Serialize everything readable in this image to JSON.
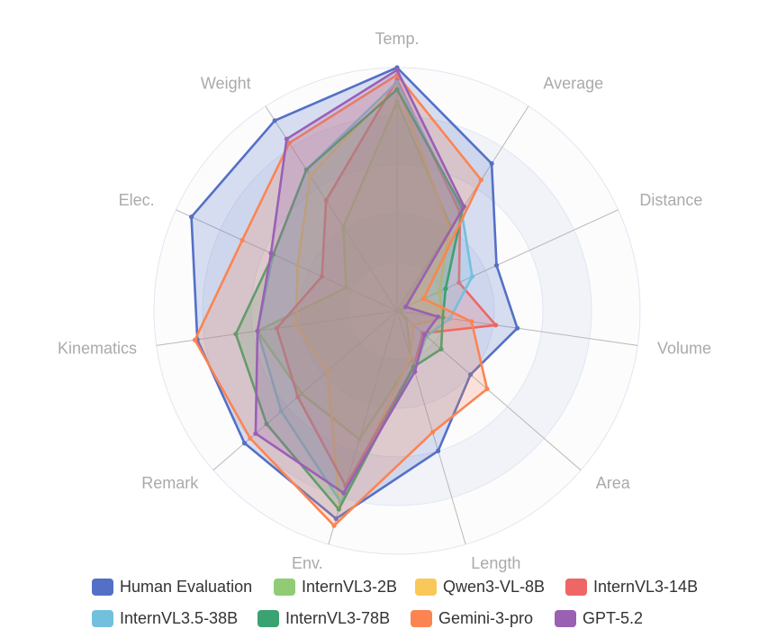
{
  "chart_data": {
    "type": "radar",
    "indicators": [
      "Temp.",
      "Average",
      "Distance",
      "Volume",
      "Area",
      "Length",
      "Env.",
      "Remark",
      "Kinematics",
      "Elec.",
      "Weight"
    ],
    "max": 100,
    "grid": true,
    "legend": "bottom",
    "series": [
      {
        "name": "Human Evaluation",
        "color": "#5470c6",
        "values": [
          100,
          72,
          45,
          50,
          40,
          60,
          89,
          83,
          83,
          93,
          93
        ]
      },
      {
        "name": "InternVL3-2B",
        "color": "#91cc75",
        "values": [
          86,
          41,
          3,
          1,
          5,
          21,
          55,
          52,
          58,
          23,
          41
        ]
      },
      {
        "name": "Qwen3-VL-8B",
        "color": "#fac858",
        "values": [
          93,
          40,
          19,
          19,
          9,
          20,
          84,
          38,
          42,
          45,
          66
        ]
      },
      {
        "name": "InternVL3-14B",
        "color": "#ee6666",
        "values": [
          95,
          48,
          28,
          41,
          14,
          24,
          75,
          54,
          50,
          34,
          54
        ]
      },
      {
        "name": "InternVL3.5-38B",
        "color": "#73c0de",
        "values": [
          94,
          49,
          34,
          22,
          16,
          25,
          82,
          63,
          58,
          56,
          69
        ]
      },
      {
        "name": "InternVL3-78B",
        "color": "#3ba272",
        "values": [
          91,
          50,
          22,
          19,
          24,
          24,
          85,
          71,
          67,
          56,
          69
        ]
      },
      {
        "name": "Gemini-3-pro",
        "color": "#fc8452",
        "values": [
          97,
          64,
          12,
          31,
          49,
          52,
          92,
          80,
          84,
          70,
          82
        ]
      },
      {
        "name": "GPT-5.2",
        "color": "#9a60b4",
        "values": [
          99,
          51,
          4,
          17,
          15,
          26,
          78,
          77,
          58,
          57,
          84
        ]
      }
    ]
  }
}
